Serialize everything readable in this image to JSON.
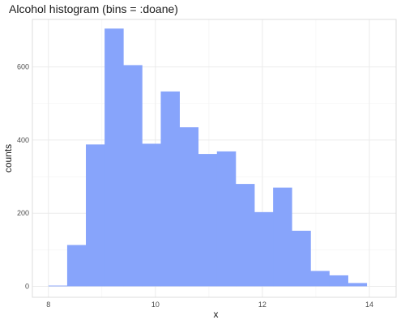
{
  "chart_data": {
    "type": "bar",
    "title": "Alcohol histogram (bins = :doane)",
    "xlabel": "x",
    "ylabel": "counts",
    "xlim": [
      7.7,
      14.5
    ],
    "ylim": [
      -30,
      730
    ],
    "x_ticks": [
      8,
      10,
      12,
      14
    ],
    "y_ticks": [
      0,
      200,
      400,
      600
    ],
    "grid": true,
    "bar_color": "#87a4fb",
    "bins": [
      {
        "x0": 8.0,
        "x1": 8.35,
        "count": 2
      },
      {
        "x0": 8.35,
        "x1": 8.7,
        "count": 113
      },
      {
        "x0": 8.7,
        "x1": 9.05,
        "count": 388
      },
      {
        "x0": 9.05,
        "x1": 9.4,
        "count": 705
      },
      {
        "x0": 9.4,
        "x1": 9.75,
        "count": 605
      },
      {
        "x0": 9.75,
        "x1": 10.1,
        "count": 390
      },
      {
        "x0": 10.1,
        "x1": 10.45,
        "count": 533
      },
      {
        "x0": 10.45,
        "x1": 10.8,
        "count": 435
      },
      {
        "x0": 10.8,
        "x1": 11.15,
        "count": 362
      },
      {
        "x0": 11.15,
        "x1": 11.5,
        "count": 369
      },
      {
        "x0": 11.5,
        "x1": 11.85,
        "count": 280
      },
      {
        "x0": 11.85,
        "x1": 12.2,
        "count": 203
      },
      {
        "x0": 12.2,
        "x1": 12.55,
        "count": 270
      },
      {
        "x0": 12.55,
        "x1": 12.9,
        "count": 152
      },
      {
        "x0": 12.9,
        "x1": 13.25,
        "count": 42
      },
      {
        "x0": 13.25,
        "x1": 13.6,
        "count": 30
      },
      {
        "x0": 13.6,
        "x1": 13.95,
        "count": 9
      }
    ]
  }
}
